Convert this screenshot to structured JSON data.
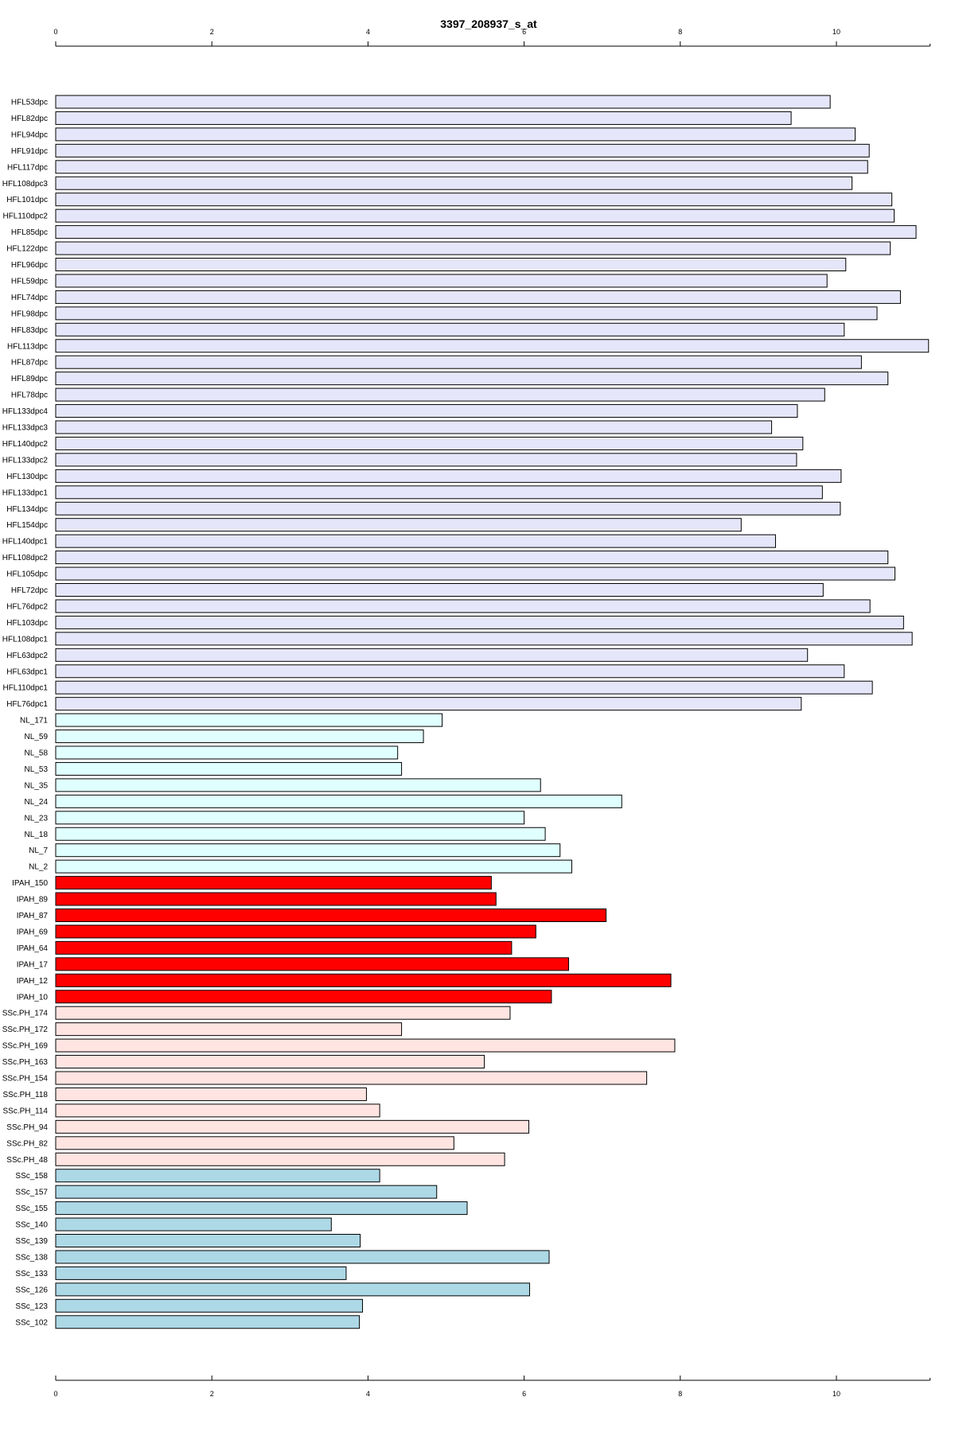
{
  "chart_data": {
    "type": "bar",
    "orientation": "horizontal",
    "title": "3397_208937_s_at",
    "xlabel": "",
    "ylabel": "",
    "xlim": [
      0,
      11.2
    ],
    "xticks": [
      0,
      2,
      4,
      6,
      8,
      10
    ],
    "xtick_labels": [
      "0",
      "2",
      "4",
      "6",
      "8",
      "10"
    ],
    "grid": false,
    "axes": [
      "top",
      "bottom"
    ],
    "colors": {
      "HFL": "#e6e6fa",
      "NL": "#e0ffff",
      "IPAH": "#ff0000",
      "SScPH": "#ffe4e1",
      "SSc": "#add8e6",
      "stroke": "#000000"
    },
    "categories": [
      "HFL53dpc",
      "HFL82dpc",
      "HFL94dpc",
      "HFL91dpc",
      "HFL117dpc",
      "HFL108dpc3",
      "HFL101dpc",
      "HFL110dpc2",
      "HFL85dpc",
      "HFL122dpc",
      "HFL96dpc",
      "HFL59dpc",
      "HFL74dpc",
      "HFL98dpc",
      "HFL83dpc",
      "HFL113dpc",
      "HFL87dpc",
      "HFL89dpc",
      "HFL78dpc",
      "HFL133dpc4",
      "HFL133dpc3",
      "HFL140dpc2",
      "HFL133dpc2",
      "HFL130dpc",
      "HFL133dpc1",
      "HFL134dpc",
      "HFL154dpc",
      "HFL140dpc1",
      "HFL108dpc2",
      "HFL105dpc",
      "HFL72dpc",
      "HFL76dpc2",
      "HFL103dpc",
      "HFL108dpc1",
      "HFL63dpc2",
      "HFL63dpc1",
      "HFL110dpc1",
      "HFL76dpc1",
      "NL_171",
      "NL_59",
      "NL_58",
      "NL_53",
      "NL_35",
      "NL_24",
      "NL_23",
      "NL_18",
      "NL_7",
      "NL_2",
      "IPAH_150",
      "IPAH_89",
      "IPAH_87",
      "IPAH_69",
      "IPAH_64",
      "IPAH_17",
      "IPAH_12",
      "IPAH_10",
      "SSc.PH_174",
      "SSc.PH_172",
      "SSc.PH_169",
      "SSc.PH_163",
      "SSc.PH_154",
      "SSc.PH_118",
      "SSc.PH_114",
      "SSc.PH_94",
      "SSc.PH_82",
      "SSc.PH_48",
      "SSc_158",
      "SSc_157",
      "SSc_155",
      "SSc_140",
      "SSc_139",
      "SSc_138",
      "SSc_133",
      "SSc_126",
      "SSc_123",
      "SSc_102"
    ],
    "groups": [
      "HFL",
      "HFL",
      "HFL",
      "HFL",
      "HFL",
      "HFL",
      "HFL",
      "HFL",
      "HFL",
      "HFL",
      "HFL",
      "HFL",
      "HFL",
      "HFL",
      "HFL",
      "HFL",
      "HFL",
      "HFL",
      "HFL",
      "HFL",
      "HFL",
      "HFL",
      "HFL",
      "HFL",
      "HFL",
      "HFL",
      "HFL",
      "HFL",
      "HFL",
      "HFL",
      "HFL",
      "HFL",
      "HFL",
      "HFL",
      "HFL",
      "HFL",
      "HFL",
      "HFL",
      "NL",
      "NL",
      "NL",
      "NL",
      "NL",
      "NL",
      "NL",
      "NL",
      "NL",
      "NL",
      "IPAH",
      "IPAH",
      "IPAH",
      "IPAH",
      "IPAH",
      "IPAH",
      "IPAH",
      "IPAH",
      "SScPH",
      "SScPH",
      "SScPH",
      "SScPH",
      "SScPH",
      "SScPH",
      "SScPH",
      "SScPH",
      "SScPH",
      "SScPH",
      "SSc",
      "SSc",
      "SSc",
      "SSc",
      "SSc",
      "SSc",
      "SSc",
      "SSc",
      "SSc",
      "SSc"
    ],
    "values": [
      9.92,
      9.42,
      10.24,
      10.42,
      10.4,
      10.2,
      10.71,
      10.74,
      11.02,
      10.69,
      10.12,
      9.88,
      10.82,
      10.52,
      10.1,
      11.18,
      10.32,
      10.66,
      9.85,
      9.5,
      9.17,
      9.57,
      9.49,
      10.06,
      9.82,
      10.05,
      8.78,
      9.22,
      10.66,
      10.75,
      9.83,
      10.43,
      10.86,
      10.97,
      9.63,
      10.1,
      10.46,
      9.55,
      4.95,
      4.71,
      4.38,
      4.43,
      6.21,
      7.25,
      6.0,
      6.27,
      6.46,
      6.61,
      5.58,
      5.64,
      7.05,
      6.15,
      5.84,
      6.57,
      7.88,
      6.35,
      5.82,
      4.43,
      7.93,
      5.49,
      7.57,
      3.98,
      4.15,
      6.06,
      5.1,
      5.75,
      4.15,
      4.88,
      5.27,
      3.53,
      3.9,
      6.32,
      3.72,
      6.07,
      3.93,
      3.89
    ]
  }
}
